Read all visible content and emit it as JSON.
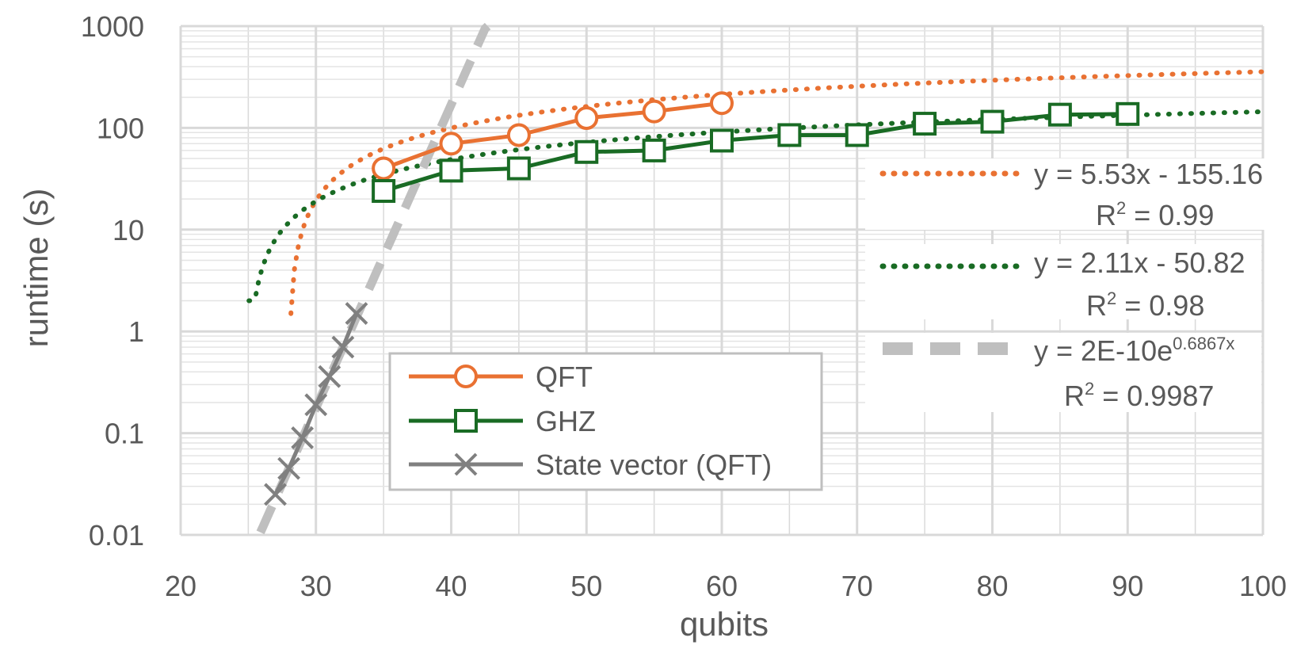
{
  "chart_data": {
    "type": "line",
    "xlabel": "qubits",
    "ylabel": "runtime (s)",
    "xlim": [
      20,
      100
    ],
    "ylim": [
      0.01,
      1000
    ],
    "yscale": "log",
    "x_ticks": [
      "20",
      "30",
      "40",
      "50",
      "60",
      "70",
      "80",
      "90",
      "100"
    ],
    "y_ticks": [
      "0.01",
      "0.1",
      "1",
      "10",
      "100",
      "1000"
    ],
    "colors": {
      "qft": "#E97132",
      "ghz": "#196B24",
      "sv": "#808080",
      "sv_trend": "#BFBFBF",
      "grid": "#D9D9D9"
    },
    "series": [
      {
        "name": "QFT",
        "marker": "circle",
        "x": [
          35,
          40,
          45,
          50,
          55,
          60
        ],
        "y": [
          40,
          70,
          85,
          125,
          145,
          175
        ]
      },
      {
        "name": "GHZ",
        "marker": "square",
        "x": [
          35,
          40,
          45,
          50,
          55,
          60,
          65,
          70,
          75,
          80,
          85,
          90
        ],
        "y": [
          24,
          38,
          40,
          58,
          60,
          75,
          85,
          85,
          110,
          115,
          135,
          137
        ]
      },
      {
        "name": "State vector (QFT)",
        "marker": "x",
        "x": [
          27,
          28,
          29,
          30,
          31,
          32,
          33
        ],
        "y": [
          0.025,
          0.045,
          0.09,
          0.19,
          0.36,
          0.7,
          1.5
        ]
      }
    ],
    "trendlines": [
      {
        "series": "QFT",
        "type": "log",
        "style": "dotted",
        "equation": "y = 5.53x - 155.16",
        "r2_label": "R",
        "r2_sup": "2",
        "r2_value": " = 0.99"
      },
      {
        "series": "GHZ",
        "type": "log",
        "style": "dotted",
        "equation": "y = 2.11x - 50.82",
        "r2_label": "R",
        "r2_sup": "2",
        "r2_value": " = 0.98"
      },
      {
        "series": "State vector (QFT)",
        "type": "exp",
        "style": "dashed",
        "equation_base": "y = 2E-10e",
        "equation_exp": "0.6867x",
        "r2_label": "R",
        "r2_sup": "2",
        "r2_value": " = 0.9987"
      }
    ]
  }
}
